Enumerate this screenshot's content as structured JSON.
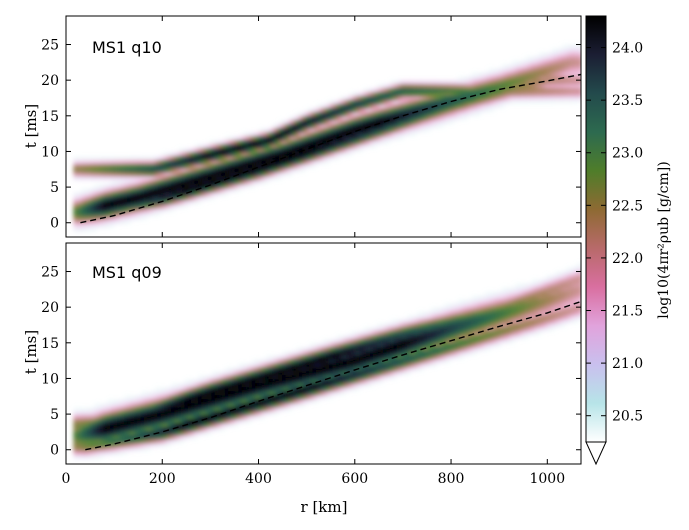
{
  "chart_data": {
    "type": "heatmap",
    "panels": [
      {
        "label": "MS1 q10",
        "ylabel": "t [ms]",
        "ylim": [
          -2,
          29
        ],
        "yticks": [
          "0",
          "5",
          "10",
          "15",
          "20",
          "25"
        ],
        "dashed_line": [
          [
            30,
            0
          ],
          [
            100,
            1.0
          ],
          [
            200,
            3.0
          ],
          [
            300,
            5.3
          ],
          [
            400,
            7.8
          ],
          [
            500,
            10.3
          ],
          [
            600,
            12.8
          ],
          [
            700,
            15.0
          ],
          [
            800,
            17.0
          ],
          [
            900,
            18.7
          ],
          [
            1000,
            19.9
          ],
          [
            1070,
            20.8
          ]
        ],
        "bands": [
          {
            "name": "main",
            "center": [
              [
                25,
                1.5
              ],
              [
                150,
                3.5
              ],
              [
                300,
                6.5
              ],
              [
                450,
                9.5
              ],
              [
                600,
                13.0
              ],
              [
                750,
                16.0
              ],
              [
                900,
                19.0
              ],
              [
                1050,
                22.5
              ]
            ],
            "width": 2.2,
            "core_range": [
              80,
              650
            ]
          },
          {
            "name": "upper-arm",
            "center": [
              [
                180,
                7.5
              ],
              [
                300,
                9.5
              ],
              [
                420,
                11.5
              ],
              [
                500,
                14.0
              ],
              [
                600,
                16.5
              ],
              [
                700,
                18.5
              ]
            ],
            "width": 1.3,
            "core_range": [
              300,
              450
            ]
          },
          {
            "name": "lower-arm",
            "center": [
              [
                30,
                1.0
              ],
              [
                200,
                3.5
              ],
              [
                400,
                7.5
              ],
              [
                600,
                12.0
              ],
              [
                800,
                16.5
              ],
              [
                1000,
                20.0
              ]
            ],
            "width": 1.5,
            "core_range": [
              250,
              500
            ]
          }
        ]
      },
      {
        "label": "MS1 q09",
        "ylabel": "t [ms]",
        "ylim": [
          -2,
          29
        ],
        "yticks": [
          "0",
          "5",
          "10",
          "15",
          "20",
          "25"
        ],
        "dashed_line": [
          [
            40,
            0
          ],
          [
            100,
            0.8
          ],
          [
            200,
            2.5
          ],
          [
            300,
            4.5
          ],
          [
            400,
            6.8
          ],
          [
            500,
            9.0
          ],
          [
            600,
            11.2
          ],
          [
            700,
            13.3
          ],
          [
            800,
            15.3
          ],
          [
            900,
            17.3
          ],
          [
            1000,
            19.2
          ],
          [
            1070,
            20.8
          ]
        ],
        "bands": [
          {
            "name": "main",
            "center": [
              [
                25,
                2.0
              ],
              [
                200,
                5.0
              ],
              [
                400,
                9.0
              ],
              [
                600,
                12.5
              ],
              [
                800,
                17.0
              ],
              [
                1000,
                21.0
              ],
              [
                1070,
                22.5
              ]
            ],
            "width": 2.6,
            "core_range": [
              80,
              700
            ]
          },
          {
            "name": "upper-arm",
            "center": [
              [
                100,
                3.5
              ],
              [
                300,
                8.0
              ],
              [
                500,
                12.0
              ],
              [
                700,
                16.0
              ],
              [
                900,
                19.5
              ],
              [
                1070,
                24.0
              ]
            ],
            "width": 1.8,
            "core_range": [
              250,
              550
            ]
          },
          {
            "name": "lower-arm",
            "center": [
              [
                40,
                0.5
              ],
              [
                200,
                2.5
              ],
              [
                400,
                6.5
              ],
              [
                600,
                10.5
              ],
              [
                800,
                14.5
              ],
              [
                1000,
                18.5
              ],
              [
                1070,
                20.0
              ]
            ],
            "width": 1.5,
            "core_range": [
              250,
              500
            ]
          }
        ]
      }
    ],
    "xlabel": "r [km]",
    "xlim": [
      0,
      1070
    ],
    "xticks": [
      "0",
      "200",
      "400",
      "600",
      "800",
      "1000"
    ],
    "colorbar": {
      "label": "log10(4πr²ρub [g/cm])",
      "range": [
        20.25,
        24.3
      ],
      "ticks": [
        "20.5",
        "21.0",
        "21.5",
        "22.0",
        "22.5",
        "23.0",
        "23.5",
        "24.0"
      ],
      "extend": "min",
      "colors": [
        "#ffffff",
        "#b7e4e8",
        "#c9c0ee",
        "#e1a3dc",
        "#d96fa0",
        "#b86a6a",
        "#8e6a33",
        "#4f7d2a",
        "#2d6a4f",
        "#234a4c",
        "#1b1e33",
        "#000000"
      ]
    }
  }
}
